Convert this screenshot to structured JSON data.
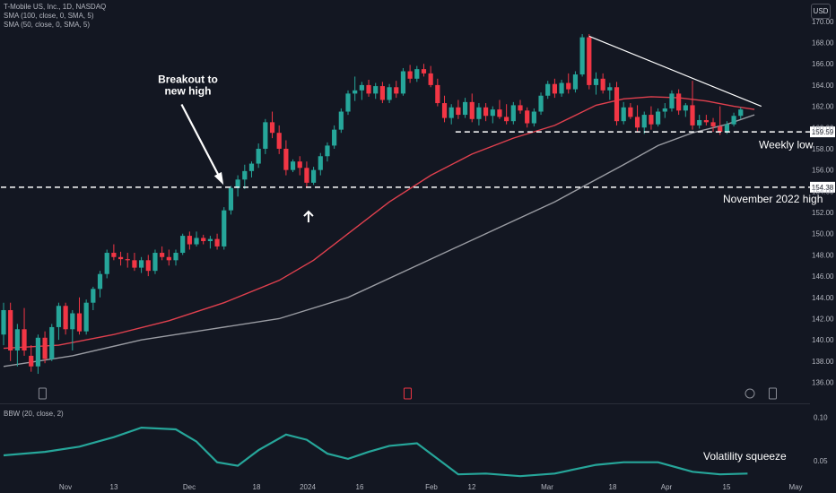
{
  "legend": {
    "symbol": "T-Mobile US, Inc., 1D, NASDAQ",
    "sma100": "SMA (100, close, 0, SMA, 5)",
    "sma50": "SMA (50, close, 0, SMA, 5)"
  },
  "currency": "USD",
  "bbw_legend": "BBW (20, close, 2)",
  "colors": {
    "up": "#26a69a",
    "down": "#f23645",
    "sma50": "#e0404e",
    "sma100": "#9a9ca3",
    "bbw": "#26a69a",
    "background": "#131722"
  },
  "chart_data": [
    {
      "type": "candlestick",
      "title": "",
      "y_axis": {
        "ticks": [
          136,
          138,
          140,
          142,
          144,
          146,
          148,
          150,
          152,
          154,
          156,
          158,
          160,
          162,
          164,
          166,
          168,
          170
        ],
        "min": 135.2,
        "max": 171.0,
        "grid": false
      },
      "x_axis": {
        "ticks": [
          "Nov",
          "13",
          "Dec",
          "18",
          "2024",
          "16",
          "Feb",
          "12",
          "Mar",
          "18",
          "Apr",
          "15",
          "May"
        ]
      },
      "ohlc": [
        [
          140.5,
          143.5,
          139.5,
          142.8
        ],
        [
          142.8,
          143.5,
          138.0,
          139.0
        ],
        [
          139.0,
          141.5,
          137.5,
          141.0
        ],
        [
          141.0,
          143.0,
          138.5,
          139.0
        ],
        [
          138.5,
          139.5,
          137.0,
          137.5
        ],
        [
          137.5,
          140.5,
          136.8,
          140.2
        ],
        [
          140.2,
          140.8,
          137.8,
          138.2
        ],
        [
          138.2,
          141.5,
          138.0,
          141.2
        ],
        [
          141.2,
          143.5,
          140.0,
          143.2
        ],
        [
          143.2,
          143.5,
          140.5,
          141.0
        ],
        [
          141.0,
          142.8,
          139.0,
          142.5
        ],
        [
          142.5,
          144.0,
          140.5,
          140.8
        ],
        [
          140.8,
          143.8,
          140.5,
          143.5
        ],
        [
          143.5,
          145.0,
          142.8,
          144.8
        ],
        [
          144.8,
          146.5,
          144.0,
          146.2
        ],
        [
          146.2,
          148.5,
          145.8,
          148.2
        ],
        [
          148.2,
          149.0,
          147.5,
          147.8
        ],
        [
          147.8,
          148.3,
          147.0,
          147.6
        ],
        [
          147.6,
          148.2,
          146.8,
          147.5
        ],
        [
          147.5,
          148.2,
          146.5,
          146.8
        ],
        [
          146.8,
          147.8,
          146.3,
          147.5
        ],
        [
          147.5,
          148.0,
          146.0,
          146.5
        ],
        [
          146.5,
          148.5,
          146.2,
          148.2
        ],
        [
          148.2,
          148.8,
          147.5,
          147.8
        ],
        [
          147.8,
          148.5,
          147.0,
          147.5
        ],
        [
          147.5,
          148.5,
          147.0,
          148.2
        ],
        [
          148.2,
          150.0,
          148.0,
          149.8
        ],
        [
          149.8,
          150.2,
          148.5,
          149.0
        ],
        [
          149.0,
          150.2,
          148.8,
          149.6
        ],
        [
          149.6,
          149.9,
          149.0,
          149.3
        ],
        [
          149.3,
          149.8,
          148.6,
          149.5
        ],
        [
          149.5,
          150.0,
          148.5,
          148.8
        ],
        [
          148.8,
          152.5,
          148.5,
          152.2
        ],
        [
          152.2,
          154.5,
          151.8,
          154.3
        ],
        [
          154.3,
          155.5,
          153.5,
          155.1
        ],
        [
          155.1,
          156.5,
          154.2,
          155.9
        ],
        [
          155.9,
          156.8,
          155.3,
          156.6
        ],
        [
          156.6,
          158.5,
          156.2,
          158.0
        ],
        [
          158.0,
          160.8,
          157.5,
          160.5
        ],
        [
          160.5,
          161.5,
          159.0,
          159.5
        ],
        [
          159.5,
          160.2,
          157.5,
          158.0
        ],
        [
          158.0,
          158.8,
          155.5,
          156.0
        ],
        [
          156.0,
          157.0,
          155.8,
          156.8
        ],
        [
          156.8,
          157.3,
          155.5,
          156.2
        ],
        [
          156.2,
          156.8,
          154.3,
          154.8
        ],
        [
          154.8,
          156.3,
          154.6,
          156.0
        ],
        [
          156.0,
          157.6,
          155.5,
          157.3
        ],
        [
          157.3,
          158.6,
          156.8,
          158.3
        ],
        [
          158.3,
          160.2,
          158.0,
          159.8
        ],
        [
          159.8,
          161.8,
          159.5,
          161.5
        ],
        [
          161.5,
          163.5,
          161.2,
          163.2
        ],
        [
          163.2,
          164.8,
          162.5,
          163.5
        ],
        [
          163.5,
          164.3,
          162.6,
          164.0
        ],
        [
          164.0,
          164.5,
          162.9,
          163.2
        ],
        [
          163.2,
          164.2,
          162.7,
          163.9
        ],
        [
          163.9,
          164.3,
          162.3,
          162.6
        ],
        [
          162.6,
          164.1,
          162.3,
          163.8
        ],
        [
          163.8,
          164.4,
          162.8,
          163.2
        ],
        [
          163.2,
          165.6,
          163.0,
          165.3
        ],
        [
          165.3,
          165.9,
          164.2,
          164.6
        ],
        [
          164.6,
          165.8,
          164.3,
          165.5
        ],
        [
          165.5,
          166.0,
          164.8,
          165.1
        ],
        [
          165.1,
          165.8,
          163.8,
          164.0
        ],
        [
          164.0,
          164.6,
          162.0,
          162.3
        ],
        [
          162.3,
          163.0,
          160.5,
          160.9
        ],
        [
          160.9,
          162.2,
          160.3,
          161.9
        ],
        [
          161.9,
          162.6,
          160.8,
          161.2
        ],
        [
          161.2,
          162.8,
          160.9,
          162.4
        ],
        [
          162.4,
          163.2,
          160.5,
          160.8
        ],
        [
          160.8,
          162.3,
          160.2,
          161.9
        ],
        [
          161.9,
          162.3,
          160.6,
          161.1
        ],
        [
          161.1,
          162.0,
          160.4,
          161.7
        ],
        [
          161.7,
          162.6,
          160.8,
          161.0
        ],
        [
          161.0,
          162.2,
          160.3,
          160.6
        ],
        [
          160.6,
          162.4,
          160.3,
          162.1
        ],
        [
          162.1,
          162.6,
          161.3,
          161.6
        ],
        [
          161.6,
          161.9,
          160.0,
          160.4
        ],
        [
          160.4,
          161.8,
          160.1,
          161.5
        ],
        [
          161.5,
          163.3,
          161.2,
          163.0
        ],
        [
          163.0,
          164.4,
          162.7,
          164.1
        ],
        [
          164.1,
          164.6,
          162.8,
          163.2
        ],
        [
          163.2,
          164.5,
          162.9,
          164.2
        ],
        [
          164.2,
          165.1,
          163.2,
          163.6
        ],
        [
          163.6,
          165.3,
          163.3,
          165.0
        ],
        [
          165.0,
          168.8,
          164.8,
          168.5
        ],
        [
          168.5,
          168.8,
          163.6,
          164.0
        ],
        [
          164.0,
          165.2,
          163.1,
          164.6
        ],
        [
          164.6,
          165.1,
          163.2,
          163.5
        ],
        [
          163.5,
          164.2,
          162.6,
          163.8
        ],
        [
          163.8,
          164.3,
          160.2,
          160.6
        ],
        [
          160.6,
          162.4,
          160.3,
          161.9
        ],
        [
          161.9,
          162.3,
          160.8,
          161.0
        ],
        [
          161.0,
          162.1,
          159.6,
          160.0
        ],
        [
          160.0,
          161.5,
          159.4,
          161.2
        ],
        [
          161.2,
          162.0,
          159.8,
          160.3
        ],
        [
          160.3,
          161.8,
          160.1,
          161.5
        ],
        [
          161.5,
          162.3,
          160.9,
          161.8
        ],
        [
          161.8,
          163.5,
          161.5,
          163.2
        ],
        [
          163.2,
          163.6,
          161.2,
          161.6
        ],
        [
          161.6,
          162.3,
          161.0,
          162.1
        ],
        [
          162.1,
          164.4,
          159.8,
          160.2
        ],
        [
          160.2,
          161.2,
          159.9,
          160.7
        ],
        [
          160.7,
          161.2,
          160.2,
          160.5
        ],
        [
          160.5,
          160.9,
          159.6,
          160.1
        ],
        [
          160.1,
          162.0,
          159.3,
          159.6
        ],
        [
          159.6,
          160.6,
          159.4,
          160.3
        ],
        [
          160.3,
          161.4,
          160.1,
          161.1
        ],
        [
          161.1,
          161.9,
          160.8,
          161.7
        ]
      ],
      "sma50": [
        [
          0,
          139.2
        ],
        [
          8,
          139.5
        ],
        [
          16,
          140.5
        ],
        [
          24,
          141.8
        ],
        [
          32,
          143.5
        ],
        [
          40,
          145.6
        ],
        [
          45,
          147.5
        ],
        [
          50,
          150.0
        ],
        [
          56,
          153.0
        ],
        [
          62,
          155.5
        ],
        [
          68,
          157.5
        ],
        [
          74,
          159.0
        ],
        [
          80,
          160.2
        ],
        [
          86,
          162.1
        ],
        [
          90,
          162.7
        ],
        [
          94,
          162.9
        ],
        [
          98,
          162.8
        ],
        [
          102,
          162.5
        ],
        [
          106,
          162.0
        ],
        [
          109,
          161.7
        ]
      ],
      "sma100": [
        [
          0,
          137.5
        ],
        [
          10,
          138.5
        ],
        [
          20,
          140.0
        ],
        [
          30,
          141.0
        ],
        [
          40,
          142.0
        ],
        [
          50,
          144.0
        ],
        [
          60,
          147.0
        ],
        [
          70,
          150.0
        ],
        [
          80,
          153.0
        ],
        [
          90,
          156.5
        ],
        [
          95,
          158.3
        ],
        [
          100,
          159.5
        ],
        [
          105,
          160.3
        ],
        [
          109,
          161.2
        ]
      ],
      "annotations": [
        {
          "text": "Breakout to new high",
          "lines": [
            "Breakout to",
            "new high"
          ],
          "x_index": 33,
          "y": 164.2
        },
        {
          "text": "Weekly low",
          "x_index": 105,
          "y": 158.3
        },
        {
          "text": "November 2022 high",
          "x_index": 99,
          "y": 153.2
        }
      ],
      "levels": [
        {
          "label": "159.59",
          "value": 159.59,
          "from_index": 66,
          "style": "dashed"
        },
        {
          "label": "154.38",
          "value": 154.38,
          "from_index": 0,
          "style": "dashed"
        }
      ],
      "trendline": {
        "from": [
          85,
          168.6
        ],
        "to": [
          110,
          162.0
        ]
      },
      "up_arrow": {
        "x_index": 44,
        "y": 153.6
      }
    },
    {
      "type": "line",
      "title": "BBW (20, close, 2)",
      "series": [
        {
          "name": "BBW",
          "x": [
            0,
            6,
            11,
            16,
            20,
            25,
            28,
            31,
            34,
            37,
            41,
            44,
            47,
            50,
            53,
            56,
            60,
            66,
            70,
            75,
            80,
            86,
            90,
            95,
            100,
            104,
            108
          ],
          "y": [
            0.056,
            0.06,
            0.066,
            0.077,
            0.088,
            0.086,
            0.072,
            0.048,
            0.044,
            0.062,
            0.08,
            0.074,
            0.058,
            0.052,
            0.06,
            0.067,
            0.07,
            0.034,
            0.035,
            0.032,
            0.035,
            0.045,
            0.048,
            0.048,
            0.037,
            0.034,
            0.035
          ]
        }
      ],
      "y_axis": {
        "ticks": [
          0.05,
          0.1
        ],
        "tick_labels": [
          "0.05",
          "0.10"
        ],
        "min": 0.027,
        "max": 0.114
      },
      "annotations": [
        {
          "text": "Volatility squeeze"
        }
      ]
    }
  ]
}
